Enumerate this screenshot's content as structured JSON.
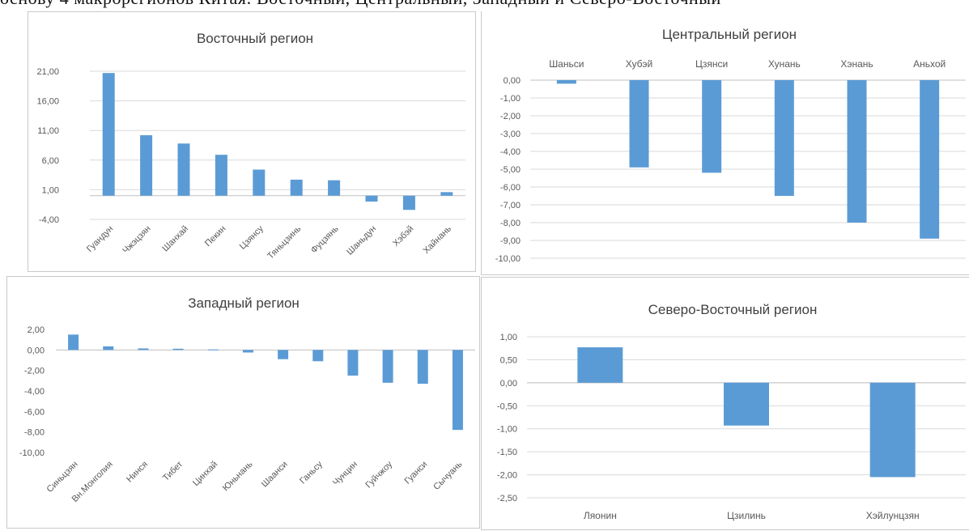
{
  "top_text": "основу 4 макрорегионов Китая: Восточный, Центральный, Западный и Северо-Восточный",
  "colors": {
    "bar": "#5b9bd5",
    "grid": "#d9d9d9",
    "axis_text": "#595959",
    "title": "#404040"
  },
  "chart_data": [
    {
      "type": "bar",
      "title": "Восточный регион",
      "categories": [
        "Гуандун",
        "Чжэцзян",
        "Шанхай",
        "Пекин",
        "Цзянсу",
        "Тяньцзинь",
        "Фуцзянь",
        "Шаньдун",
        "Хэбэй",
        "Хайнань"
      ],
      "values": [
        20.7,
        10.2,
        8.8,
        6.9,
        4.4,
        2.7,
        2.6,
        -1.0,
        -2.4,
        0.6
      ],
      "yticks": [
        "21,00",
        "16,00",
        "11,00",
        "6,00",
        "1,00",
        "-4,00"
      ],
      "ylim": [
        -4,
        21
      ],
      "grid": true,
      "category_labels": "bottom-rotated"
    },
    {
      "type": "bar",
      "title": "Центральный регион",
      "categories": [
        "Шаньси",
        "Хубэй",
        "Цзянси",
        "Хунань",
        "Хэнань",
        "Аньхой"
      ],
      "values": [
        -0.2,
        -4.9,
        -5.2,
        -6.5,
        -8.0,
        -8.9
      ],
      "yticks": [
        "0,00",
        "-1,00",
        "-2,00",
        "-3,00",
        "-4,00",
        "-5,00",
        "-6,00",
        "-7,00",
        "-8,00",
        "-9,00",
        "-10,00"
      ],
      "ylim": [
        -10,
        0
      ],
      "grid": true,
      "category_labels": "top"
    },
    {
      "type": "bar",
      "title": "Западный регион",
      "categories": [
        "Синьцзян",
        "Вн.Монголия",
        "Нинся",
        "Тибет",
        "Цинхай",
        "Юньнань",
        "Шаанси",
        "Ганьсу",
        "Чунцин",
        "Гуйчжоу",
        "Гуанси",
        "Сычуань"
      ],
      "values": [
        1.5,
        0.35,
        0.15,
        0.12,
        0.05,
        -0.25,
        -0.9,
        -1.1,
        -2.5,
        -3.2,
        -3.3,
        -7.8
      ],
      "yticks": [
        "2,00",
        "0,00",
        "-2,00",
        "-4,00",
        "-6,00",
        "-8,00",
        "-10,00"
      ],
      "ylim": [
        -10,
        2
      ],
      "grid": false,
      "category_labels": "bottom-rotated"
    },
    {
      "type": "bar",
      "title": "Северо-Восточный регион",
      "categories": [
        "Ляонин",
        "Цзилинь",
        "Хэйлунцзян"
      ],
      "values": [
        0.77,
        -0.93,
        -2.05
      ],
      "yticks": [
        "1,00",
        "0,50",
        "0,00",
        "-0,50",
        "-1,00",
        "-1,50",
        "-2,00",
        "-2,50"
      ],
      "ylim": [
        -2.5,
        1
      ],
      "grid": true,
      "category_labels": "bottom"
    }
  ]
}
